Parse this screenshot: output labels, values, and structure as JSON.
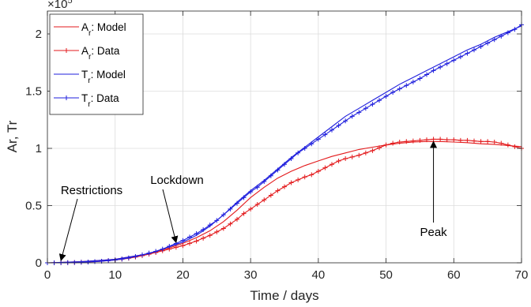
{
  "chart_data": {
    "type": "line",
    "xlabel": "Time / days",
    "ylabel": "Ar, Tr",
    "xlim": [
      0,
      70
    ],
    "ylim": [
      0,
      220000
    ],
    "x_ticks": [
      0,
      10,
      20,
      30,
      40,
      50,
      60,
      70
    ],
    "y_ticks": [
      0,
      50000,
      100000,
      150000,
      200000
    ],
    "y_tick_labels": [
      "0",
      "0.5",
      "1",
      "1.5",
      "2"
    ],
    "x_tick_labels": [
      "0",
      "10",
      "20",
      "30",
      "40",
      "50",
      "60",
      "70"
    ],
    "y_exponent": "×10",
    "y_exponent_power": "5",
    "grid": true,
    "legend_placement": "top-left",
    "series": [
      {
        "name": "A",
        "name_sub": "r",
        "name_suffix": ": Model",
        "color": "#e31a1c",
        "marker": "none",
        "x": [
          0,
          5,
          10,
          15,
          18,
          20,
          22,
          24,
          26,
          28,
          30,
          32,
          34,
          36,
          38,
          40,
          42,
          44,
          46,
          48,
          50,
          52,
          54,
          56,
          58,
          60,
          62,
          64,
          66,
          68,
          70
        ],
        "y": [
          0,
          1000,
          3000,
          8000,
          13000,
          17000,
          22000,
          28000,
          36000,
          46000,
          57000,
          66000,
          74000,
          80000,
          85000,
          89000,
          93000,
          96000,
          99000,
          101000,
          103000,
          104500,
          105500,
          106000,
          106000,
          105500,
          105000,
          104000,
          103500,
          102500,
          101500
        ]
      },
      {
        "name": "A",
        "name_sub": "r",
        "name_suffix": ": Data",
        "color": "#e31a1c",
        "marker": "plus",
        "x": [
          0,
          1,
          2,
          3,
          4,
          5,
          6,
          7,
          8,
          9,
          10,
          11,
          12,
          13,
          14,
          15,
          16,
          17,
          18,
          19,
          20,
          21,
          22,
          23,
          24,
          25,
          26,
          27,
          28,
          29,
          30,
          31,
          32,
          33,
          34,
          35,
          36,
          37,
          38,
          39,
          40,
          41,
          42,
          43,
          44,
          45,
          46,
          47,
          48,
          49,
          50,
          51,
          52,
          53,
          54,
          55,
          56,
          57,
          58,
          59,
          60,
          61,
          62,
          63,
          64,
          65,
          66,
          67,
          68,
          69,
          70
        ],
        "y": [
          0,
          0,
          100,
          200,
          300,
          500,
          700,
          1000,
          1400,
          1900,
          2500,
          3200,
          4000,
          5000,
          6200,
          7500,
          9000,
          10500,
          12000,
          13500,
          15000,
          17000,
          19000,
          21500,
          24000,
          27000,
          30000,
          34000,
          38000,
          43000,
          47000,
          51000,
          55000,
          59000,
          63000,
          66500,
          70000,
          72500,
          75000,
          77000,
          80000,
          83000,
          86000,
          89000,
          91000,
          92500,
          94000,
          96000,
          98000,
          100500,
          103000,
          104500,
          105500,
          106000,
          106500,
          107000,
          107500,
          108000,
          108000,
          107500,
          107500,
          107000,
          107000,
          106500,
          106000,
          106000,
          105500,
          104500,
          103000,
          101500,
          100000
        ]
      },
      {
        "name": "T",
        "name_sub": "r",
        "name_suffix": ": Model",
        "color": "#1f1fdd",
        "marker": "none",
        "x": [
          0,
          5,
          10,
          15,
          18,
          20,
          22,
          24,
          26,
          28,
          30,
          32,
          34,
          36,
          38,
          40,
          42,
          44,
          46,
          48,
          50,
          52,
          54,
          56,
          58,
          60,
          62,
          64,
          66,
          68,
          70
        ],
        "y": [
          0,
          1000,
          3000,
          8000,
          14000,
          18000,
          24000,
          32000,
          42000,
          53000,
          63000,
          72000,
          82000,
          92000,
          101000,
          110000,
          119000,
          128000,
          135000,
          142000,
          149000,
          156000,
          162000,
          168000,
          174000,
          180000,
          186000,
          191000,
          197000,
          202000,
          207000
        ]
      },
      {
        "name": "T",
        "name_sub": "r",
        "name_suffix": ": Data",
        "color": "#1f1fdd",
        "marker": "plus",
        "x": [
          0,
          1,
          2,
          3,
          4,
          5,
          6,
          7,
          8,
          9,
          10,
          11,
          12,
          13,
          14,
          15,
          16,
          17,
          18,
          19,
          20,
          21,
          22,
          23,
          24,
          25,
          26,
          27,
          28,
          29,
          30,
          31,
          32,
          33,
          34,
          35,
          36,
          37,
          38,
          39,
          40,
          41,
          42,
          43,
          44,
          45,
          46,
          47,
          48,
          49,
          50,
          51,
          52,
          53,
          54,
          55,
          56,
          57,
          58,
          59,
          60,
          61,
          62,
          63,
          64,
          65,
          66,
          67,
          68,
          69,
          70
        ],
        "y": [
          0,
          0,
          100,
          200,
          300,
          500,
          700,
          1000,
          1400,
          1900,
          2500,
          3300,
          4300,
          5500,
          7000,
          8500,
          10000,
          12000,
          14500,
          17000,
          19500,
          22500,
          25500,
          29000,
          33000,
          37000,
          42000,
          47000,
          52000,
          57000,
          62000,
          66000,
          71000,
          76000,
          81000,
          86000,
          91000,
          96000,
          100000,
          104000,
          108000,
          112000,
          116000,
          120000,
          124000,
          128000,
          131500,
          135000,
          138500,
          142000,
          145500,
          149000,
          152000,
          155000,
          158000,
          161000,
          164500,
          168000,
          171000,
          174000,
          177000,
          180000,
          183000,
          186000,
          189000,
          192000,
          195000,
          198000,
          201000,
          204000,
          208000
        ]
      }
    ],
    "annotations": [
      {
        "text": "Restrictions",
        "x": 2,
        "y": 0
      },
      {
        "text": "Lockdown",
        "x": 19,
        "y": 15000
      },
      {
        "text": "Peak",
        "x": 57,
        "y": 108000
      }
    ]
  }
}
